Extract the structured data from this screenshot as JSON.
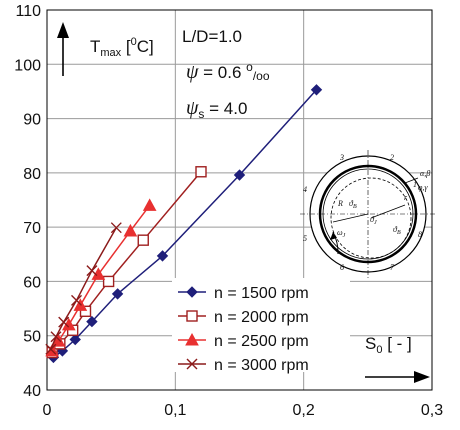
{
  "chart_data": {
    "type": "line",
    "x_ticks": [
      "0",
      "0,1",
      "0,2",
      "0,3"
    ],
    "y_ticks": [
      "40",
      "50",
      "60",
      "70",
      "80",
      "90",
      "100",
      "110"
    ],
    "xlim": [
      0,
      0.3
    ],
    "ylim": [
      40,
      110
    ],
    "grid": true,
    "y_axis_label": {
      "main": "T",
      "sub": "max",
      "rest": " [",
      "sup": "0",
      "end": "C]"
    },
    "x_axis_label": {
      "main": "S",
      "sub": "0",
      "rest": " [ - ]"
    },
    "annotations": {
      "ld": "L/D=1.0",
      "psi_sym": "ψ",
      "psi_val": " = 0.6 ",
      "psi_unit_sup": "o",
      "psi_unit_sub": "/oo",
      "psis_sym": "ψ",
      "psis_sub": "s",
      "psis_val": " = 4.0"
    },
    "series": [
      {
        "name": "n = 1500 rpm",
        "color": "#1f1f7a",
        "marker": "diamond-filled",
        "points": [
          [
            0.005,
            46.0
          ],
          [
            0.012,
            47.2
          ],
          [
            0.022,
            49.3
          ],
          [
            0.035,
            52.6
          ],
          [
            0.055,
            57.7
          ],
          [
            0.09,
            64.7
          ],
          [
            0.15,
            79.6
          ],
          [
            0.21,
            95.3
          ]
        ]
      },
      {
        "name": "n = 2000 rpm",
        "color": "#a02020",
        "marker": "square-open",
        "points": [
          [
            0.004,
            46.9
          ],
          [
            0.01,
            48.5
          ],
          [
            0.02,
            51.0
          ],
          [
            0.03,
            54.5
          ],
          [
            0.048,
            60.0
          ],
          [
            0.075,
            67.6
          ],
          [
            0.12,
            80.2
          ]
        ]
      },
      {
        "name": "n = 2500 rpm",
        "color": "#e83030",
        "marker": "triangle-filled",
        "points": [
          [
            0.004,
            47.2
          ],
          [
            0.009,
            49.0
          ],
          [
            0.017,
            52.0
          ],
          [
            0.026,
            55.6
          ],
          [
            0.04,
            61.3
          ],
          [
            0.065,
            69.3
          ],
          [
            0.08,
            74.0
          ]
        ]
      },
      {
        "name": "n = 3000 rpm",
        "color": "#8b1a1a",
        "marker": "x",
        "points": [
          [
            0.003,
            47.5
          ],
          [
            0.007,
            49.8
          ],
          [
            0.013,
            52.5
          ],
          [
            0.023,
            56.5
          ],
          [
            0.035,
            62.0
          ],
          [
            0.054,
            69.9
          ]
        ]
      }
    ],
    "inset": {
      "description": "bearing cross-section schematic",
      "sector_labels": [
        "1",
        "2",
        "3",
        "4",
        "5",
        "6",
        "7",
        "8"
      ],
      "greek_top": "α,β",
      "greek_bottom": "φ,γ",
      "r_label": "r",
      "R_label": "R",
      "theta_b": "ϑ",
      "theta_b_sub": "B",
      "theta_j": "ϑ",
      "theta_j_sub": "J",
      "omega": "ω",
      "omega_sub": "J",
      "theta": "ϑ",
      "theta_sub": "B"
    }
  }
}
